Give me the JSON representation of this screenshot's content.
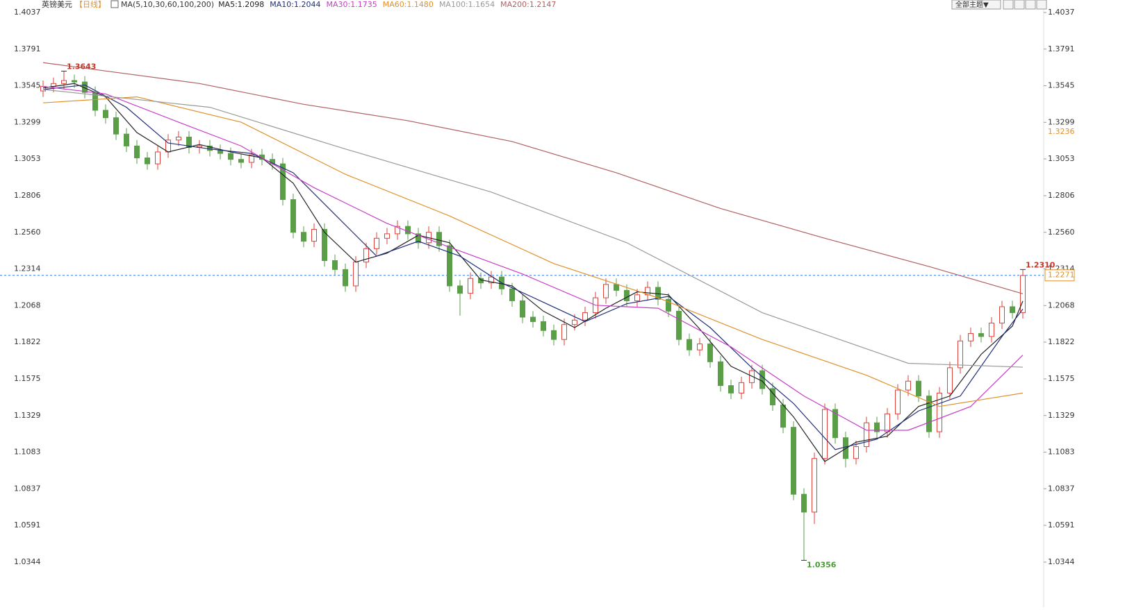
{
  "chart_data": {
    "type": "candlestick",
    "title": "英镑美元",
    "subtitle": "【日线】",
    "indicator": "MA(5,10,30,60,100,200)",
    "up_color": "#e0403a",
    "down_color": "#5a9e48",
    "xlim": [
      0,
      94
    ],
    "ylim": [
      1.0344,
      1.4037
    ],
    "yticks": [
      {
        "value": 1.4037,
        "label": "1.4037"
      },
      {
        "value": 1.3791,
        "label": "1.3791"
      },
      {
        "value": 1.3545,
        "label": "1.3545"
      },
      {
        "value": 1.3299,
        "label": "1.3299"
      },
      {
        "value": 1.3053,
        "label": "1.3053"
      },
      {
        "value": 1.2806,
        "label": "1.2806"
      },
      {
        "value": 1.256,
        "label": "1.2560"
      },
      {
        "value": 1.2314,
        "label": "1.2314"
      },
      {
        "value": 1.2068,
        "label": "1.2068"
      },
      {
        "value": 1.1822,
        "label": "1.1822"
      },
      {
        "value": 1.1575,
        "label": "1.1575"
      },
      {
        "value": 1.1329,
        "label": "1.1329"
      },
      {
        "value": 1.1083,
        "label": "1.1083"
      },
      {
        "value": 1.0837,
        "label": "1.0837"
      },
      {
        "value": 1.0591,
        "label": "1.0591"
      },
      {
        "value": 1.0344,
        "label": "1.0344"
      }
    ],
    "grid": false,
    "candles": {
      "open": [
        1.351,
        1.354,
        1.356,
        1.358,
        1.357,
        1.35,
        1.338,
        1.333,
        1.322,
        1.314,
        1.306,
        1.302,
        1.31,
        1.318,
        1.32,
        1.313,
        1.314,
        1.311,
        1.309,
        1.305,
        1.303,
        1.308,
        1.305,
        1.302,
        1.278,
        1.256,
        1.25,
        1.258,
        1.237,
        1.231,
        1.22,
        1.236,
        1.245,
        1.252,
        1.255,
        1.26,
        1.255,
        1.249,
        1.256,
        1.247,
        1.22,
        1.215,
        1.225,
        1.222,
        1.226,
        1.218,
        1.21,
        1.199,
        1.196,
        1.19,
        1.184,
        1.194,
        1.197,
        1.202,
        1.212,
        1.221,
        1.217,
        1.21,
        1.214,
        1.219,
        1.211,
        1.203,
        1.184,
        1.177,
        1.181,
        1.169,
        1.153,
        1.148,
        1.155,
        1.163,
        1.151,
        1.14,
        1.125,
        1.08,
        1.068,
        1.104,
        1.137,
        1.118,
        1.104,
        1.112,
        1.128,
        1.122,
        1.134,
        1.15,
        1.156,
        1.146,
        1.122,
        1.148,
        1.165,
        1.183,
        1.188,
        1.186,
        1.195,
        1.206,
        1.202
      ],
      "high": [
        1.358,
        1.36,
        1.3643,
        1.362,
        1.361,
        1.354,
        1.342,
        1.337,
        1.326,
        1.318,
        1.31,
        1.314,
        1.322,
        1.324,
        1.324,
        1.318,
        1.318,
        1.315,
        1.313,
        1.309,
        1.312,
        1.312,
        1.309,
        1.306,
        1.282,
        1.26,
        1.262,
        1.262,
        1.241,
        1.235,
        1.24,
        1.249,
        1.256,
        1.259,
        1.264,
        1.264,
        1.259,
        1.26,
        1.26,
        1.251,
        1.224,
        1.229,
        1.229,
        1.23,
        1.23,
        1.222,
        1.214,
        1.203,
        1.2,
        1.194,
        1.198,
        1.201,
        1.206,
        1.216,
        1.225,
        1.225,
        1.221,
        1.218,
        1.223,
        1.223,
        1.215,
        1.207,
        1.188,
        1.185,
        1.185,
        1.173,
        1.157,
        1.159,
        1.167,
        1.167,
        1.155,
        1.144,
        1.129,
        1.084,
        1.108,
        1.141,
        1.141,
        1.122,
        1.116,
        1.132,
        1.132,
        1.138,
        1.154,
        1.16,
        1.16,
        1.15,
        1.152,
        1.169,
        1.187,
        1.192,
        1.192,
        1.199,
        1.21,
        1.21,
        1.231
      ],
      "low": [
        1.347,
        1.35,
        1.352,
        1.353,
        1.346,
        1.334,
        1.329,
        1.318,
        1.31,
        1.302,
        1.298,
        1.298,
        1.306,
        1.314,
        1.309,
        1.309,
        1.307,
        1.305,
        1.301,
        1.299,
        1.299,
        1.301,
        1.298,
        1.274,
        1.252,
        1.246,
        1.246,
        1.233,
        1.227,
        1.216,
        1.216,
        1.232,
        1.241,
        1.248,
        1.251,
        1.251,
        1.245,
        1.245,
        1.243,
        1.216,
        1.2,
        1.211,
        1.218,
        1.218,
        1.214,
        1.206,
        1.195,
        1.192,
        1.186,
        1.18,
        1.18,
        1.19,
        1.193,
        1.198,
        1.208,
        1.213,
        1.206,
        1.206,
        1.21,
        1.207,
        1.199,
        1.18,
        1.173,
        1.173,
        1.165,
        1.149,
        1.144,
        1.144,
        1.151,
        1.147,
        1.136,
        1.121,
        1.076,
        1.0356,
        1.06,
        1.1,
        1.114,
        1.098,
        1.1,
        1.108,
        1.118,
        1.118,
        1.13,
        1.146,
        1.142,
        1.118,
        1.118,
        1.144,
        1.161,
        1.179,
        1.182,
        1.182,
        1.191,
        1.198,
        1.198
      ],
      "close": [
        1.354,
        1.356,
        1.358,
        1.357,
        1.35,
        1.338,
        1.333,
        1.322,
        1.314,
        1.306,
        1.302,
        1.31,
        1.318,
        1.32,
        1.313,
        1.314,
        1.311,
        1.309,
        1.305,
        1.303,
        1.308,
        1.305,
        1.302,
        1.278,
        1.256,
        1.25,
        1.258,
        1.237,
        1.231,
        1.22,
        1.236,
        1.245,
        1.252,
        1.255,
        1.26,
        1.255,
        1.249,
        1.256,
        1.247,
        1.22,
        1.215,
        1.225,
        1.222,
        1.226,
        1.218,
        1.21,
        1.199,
        1.196,
        1.19,
        1.184,
        1.194,
        1.197,
        1.202,
        1.212,
        1.221,
        1.217,
        1.21,
        1.214,
        1.219,
        1.211,
        1.203,
        1.184,
        1.177,
        1.181,
        1.169,
        1.153,
        1.148,
        1.155,
        1.163,
        1.151,
        1.14,
        1.125,
        1.08,
        1.068,
        1.104,
        1.137,
        1.118,
        1.104,
        1.112,
        1.128,
        1.122,
        1.134,
        1.15,
        1.156,
        1.146,
        1.122,
        1.148,
        1.165,
        1.183,
        1.188,
        1.186,
        1.195,
        1.206,
        1.202,
        1.227
      ]
    },
    "series": [
      {
        "name": "MA5:1.2098",
        "color": "#222222",
        "x": [
          0,
          3,
          6,
          9,
          12,
          15,
          18,
          21,
          24,
          27,
          30,
          33,
          36,
          39,
          42,
          45,
          48,
          51,
          54,
          57,
          60,
          63,
          66,
          69,
          72,
          75,
          78,
          81,
          84,
          87,
          90,
          93,
          94
        ],
        "values": [
          1.353,
          1.356,
          1.347,
          1.323,
          1.31,
          1.315,
          1.31,
          1.306,
          1.289,
          1.256,
          1.236,
          1.242,
          1.254,
          1.249,
          1.224,
          1.22,
          1.203,
          1.192,
          1.205,
          1.216,
          1.214,
          1.191,
          1.166,
          1.156,
          1.132,
          1.102,
          1.115,
          1.119,
          1.139,
          1.146,
          1.174,
          1.193,
          1.2098
        ]
      },
      {
        "name": "MA10:1.2044",
        "color": "#1f2d7a",
        "x": [
          0,
          4,
          8,
          12,
          16,
          20,
          24,
          28,
          32,
          36,
          40,
          44,
          48,
          52,
          56,
          60,
          64,
          68,
          72,
          76,
          80,
          84,
          88,
          92,
          94
        ],
        "values": [
          1.352,
          1.355,
          1.34,
          1.316,
          1.312,
          1.309,
          1.296,
          1.268,
          1.24,
          1.25,
          1.24,
          1.222,
          1.209,
          1.196,
          1.208,
          1.213,
          1.192,
          1.165,
          1.141,
          1.11,
          1.117,
          1.136,
          1.146,
          1.186,
          1.2044
        ]
      },
      {
        "name": "MA30:1.1735",
        "color": "#c83cc8",
        "x": [
          0,
          6,
          13,
          19,
          26,
          33,
          39,
          46,
          53,
          59,
          66,
          73,
          79,
          83,
          89,
          94
        ],
        "values": [
          1.354,
          1.349,
          1.33,
          1.314,
          1.286,
          1.262,
          1.246,
          1.228,
          1.207,
          1.205,
          1.179,
          1.146,
          1.123,
          1.123,
          1.139,
          1.1735
        ]
      },
      {
        "name": "MA60:1.1480",
        "color": "#e0902a",
        "x": [
          0,
          9,
          19,
          29,
          39,
          49,
          59,
          69,
          79,
          86,
          94
        ],
        "values": [
          1.343,
          1.347,
          1.33,
          1.295,
          1.267,
          1.235,
          1.212,
          1.184,
          1.16,
          1.139,
          1.148
        ]
      },
      {
        "name": "MA100:1.1654",
        "color": "#999999",
        "x": [
          0,
          16,
          29,
          43,
          56,
          69,
          83,
          94
        ],
        "values": [
          1.352,
          1.34,
          1.312,
          1.283,
          1.249,
          1.202,
          1.168,
          1.1654
        ]
      },
      {
        "name": "MA200:1.2147",
        "color": "#b06060",
        "x": [
          0,
          15,
          25,
          35,
          45,
          55,
          65,
          75,
          85,
          94
        ],
        "values": [
          1.37,
          1.356,
          1.342,
          1.331,
          1.317,
          1.296,
          1.272,
          1.252,
          1.233,
          1.2147
        ]
      }
    ],
    "annotations": [
      {
        "label": "1.3643",
        "x": 2,
        "y": 1.3643,
        "color": "#c0392b"
      },
      {
        "label": "1.0356",
        "x": 73,
        "y": 1.0356,
        "color": "#4a9a3a"
      },
      {
        "label": "1.2310",
        "x": 94,
        "y": 1.231,
        "color": "#c0392b"
      }
    ],
    "last_price": {
      "value": 1.2271,
      "label": "1.2271",
      "color": "#e0902a"
    },
    "side_label": {
      "value": 1.3236,
      "label": "1.3236",
      "color": "#e0902a"
    }
  },
  "toolbar": {
    "theme": "全部主题▼"
  }
}
